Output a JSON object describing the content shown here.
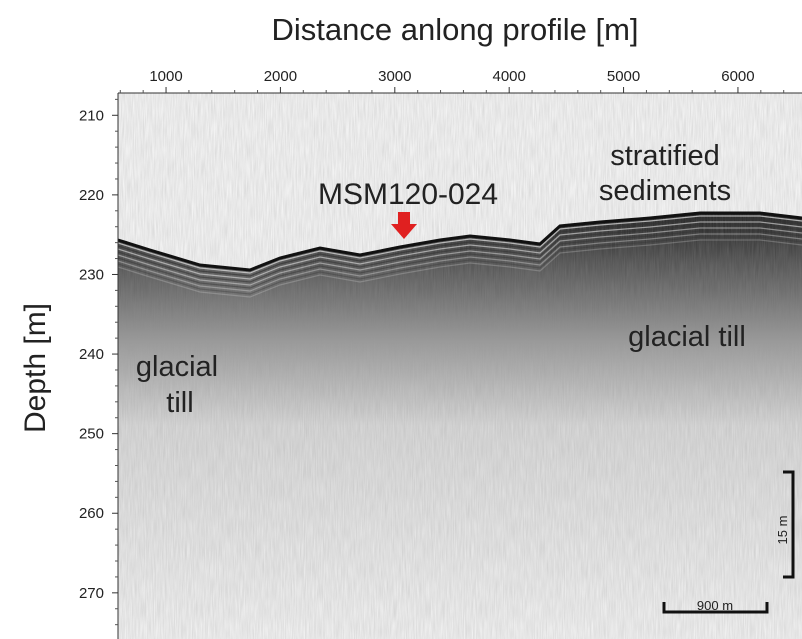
{
  "chart_data": {
    "type": "profile",
    "title": "Distance anlong profile [m]",
    "ylabel": "Depth [m]",
    "xlim": [
      580,
      6560
    ],
    "xticks": [
      1000,
      2000,
      3000,
      4000,
      5000,
      6000
    ],
    "ylim": [
      207.2,
      275.8
    ],
    "yticks": [
      210,
      220,
      230,
      240,
      250,
      260,
      270
    ],
    "marker": {
      "label": "MSM120-024",
      "color": "#e02020"
    },
    "annotations": [
      "stratified",
      "sediments",
      "glacial till",
      "glacial",
      "till"
    ],
    "scale_bars": [
      "15 m",
      "900 m"
    ]
  }
}
